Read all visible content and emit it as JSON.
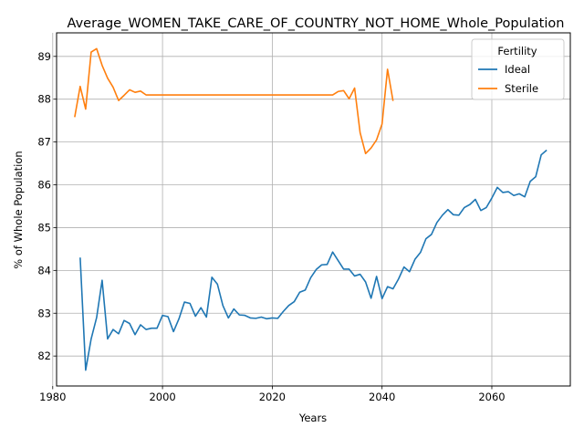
{
  "chart_data": {
    "type": "line",
    "title": "Average_WOMEN_TAKE_CARE_OF_COUNTRY_NOT_HOME_Whole_Population",
    "xlabel": "Years",
    "ylabel": "% of Whole Population",
    "xlim": [
      1980.7,
      2074.3
    ],
    "ylim": [
      81.3,
      89.55
    ],
    "xticks": [
      1980,
      2000,
      2020,
      2040,
      2060
    ],
    "yticks": [
      82,
      83,
      84,
      85,
      86,
      87,
      88,
      89
    ],
    "grid": true,
    "legend": {
      "title": "Fertility",
      "position": "top-right"
    },
    "series": [
      {
        "name": "Ideal",
        "color": "#1f77b4",
        "x": [
          1985,
          1986,
          1987,
          1988,
          1989,
          1990,
          1991,
          1992,
          1993,
          1994,
          1995,
          1996,
          1997,
          1998,
          1999,
          2000,
          2001,
          2002,
          2003,
          2004,
          2005,
          2006,
          2007,
          2008,
          2009,
          2010,
          2011,
          2012,
          2013,
          2014,
          2015,
          2016,
          2017,
          2018,
          2019,
          2020,
          2021,
          2022,
          2023,
          2024,
          2025,
          2026,
          2027,
          2028,
          2029,
          2030,
          2031,
          2032,
          2033,
          2034,
          2035,
          2036,
          2037,
          2038,
          2039,
          2040,
          2041,
          2042,
          2043,
          2044,
          2045,
          2046,
          2047,
          2048,
          2049,
          2050,
          2051,
          2052,
          2053,
          2054,
          2055,
          2056,
          2057,
          2058,
          2059,
          2060,
          2061,
          2062,
          2063,
          2064,
          2065,
          2066,
          2067,
          2068,
          2069,
          2070
        ],
        "values": [
          84.3,
          81.67,
          82.4,
          82.9,
          83.77,
          82.4,
          82.62,
          82.52,
          82.83,
          82.76,
          82.5,
          82.73,
          82.62,
          82.65,
          82.65,
          82.95,
          82.92,
          82.57,
          82.87,
          83.26,
          83.23,
          82.93,
          83.13,
          82.91,
          83.84,
          83.68,
          83.18,
          82.89,
          83.1,
          82.96,
          82.95,
          82.89,
          82.88,
          82.91,
          82.87,
          82.89,
          82.88,
          83.04,
          83.18,
          83.27,
          83.49,
          83.54,
          83.83,
          84.02,
          84.13,
          84.14,
          84.43,
          84.23,
          84.03,
          84.03,
          83.87,
          83.91,
          83.73,
          83.35,
          83.86,
          83.34,
          83.62,
          83.57,
          83.8,
          84.08,
          83.97,
          84.26,
          84.42,
          84.74,
          84.84,
          85.12,
          85.29,
          85.42,
          85.3,
          85.29,
          85.47,
          85.54,
          85.66,
          85.4,
          85.47,
          85.69,
          85.94,
          85.82,
          85.84,
          85.75,
          85.79,
          85.72,
          86.08,
          86.19,
          86.7,
          86.81
        ]
      },
      {
        "name": "Sterile",
        "color": "#ff7f0e",
        "x": [
          1984,
          1985,
          1986,
          1987,
          1988,
          1989,
          1990,
          1991,
          1992,
          1993,
          1994,
          1995,
          1996,
          1997,
          1998,
          1999,
          2000,
          2001,
          2002,
          2003,
          2004,
          2005,
          2006,
          2007,
          2008,
          2009,
          2010,
          2011,
          2012,
          2013,
          2014,
          2015,
          2016,
          2017,
          2018,
          2019,
          2020,
          2021,
          2022,
          2023,
          2024,
          2025,
          2026,
          2027,
          2028,
          2029,
          2030,
          2031,
          2032,
          2033,
          2034,
          2035,
          2036,
          2037,
          2038,
          2039,
          2040,
          2041,
          2042
        ],
        "values": [
          87.58,
          88.3,
          87.77,
          89.1,
          89.18,
          88.79,
          88.49,
          88.28,
          87.97,
          88.09,
          88.22,
          88.16,
          88.19,
          88.1,
          88.1,
          88.1,
          88.1,
          88.1,
          88.1,
          88.1,
          88.1,
          88.1,
          88.1,
          88.1,
          88.1,
          88.1,
          88.1,
          88.1,
          88.1,
          88.1,
          88.1,
          88.1,
          88.1,
          88.1,
          88.1,
          88.1,
          88.1,
          88.1,
          88.1,
          88.1,
          88.1,
          88.1,
          88.1,
          88.1,
          88.1,
          88.1,
          88.1,
          88.1,
          88.18,
          88.2,
          88.01,
          88.26,
          87.22,
          86.73,
          86.86,
          87.05,
          87.42,
          88.7,
          87.96
        ]
      }
    ]
  }
}
